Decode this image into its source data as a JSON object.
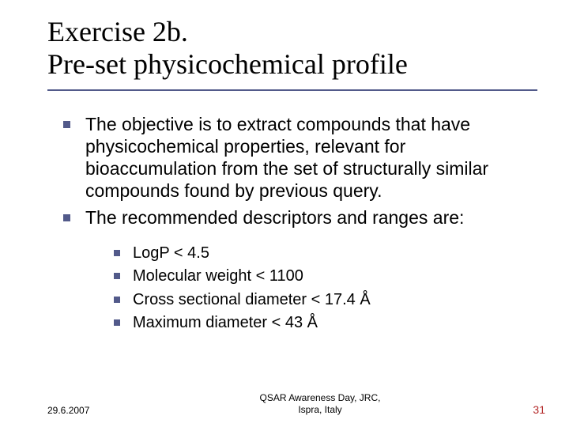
{
  "title": {
    "line1": "Exercise 2b.",
    "line2": "Pre-set physicochemical profile",
    "fontsize": 36,
    "font_family": "Times New Roman",
    "underline_color": "#525a8a"
  },
  "body": {
    "fontsize_l1": 23,
    "fontsize_l2": 20,
    "bullet_color": "#525a8a",
    "text_color": "#000000",
    "items": [
      "The objective is to extract compounds that have physicochemical properties, relevant for bioaccumulation from the set of structurally similar compounds found by previous query.",
      "The recommended descriptors and ranges are:"
    ],
    "subitems": [
      "LogP < 4.5",
      "Molecular weight < 1100",
      "Cross sectional diameter < 17.4 Å",
      "Maximum diameter < 43 Å"
    ]
  },
  "footer": {
    "date": "29.6.2007",
    "center_line1": "QSAR Awareness Day, JRC,",
    "center_line2": "Ispra, Italy",
    "page_number": "31",
    "page_color": "#b42a2a",
    "fontsize": 12
  },
  "background_color": "#ffffff"
}
